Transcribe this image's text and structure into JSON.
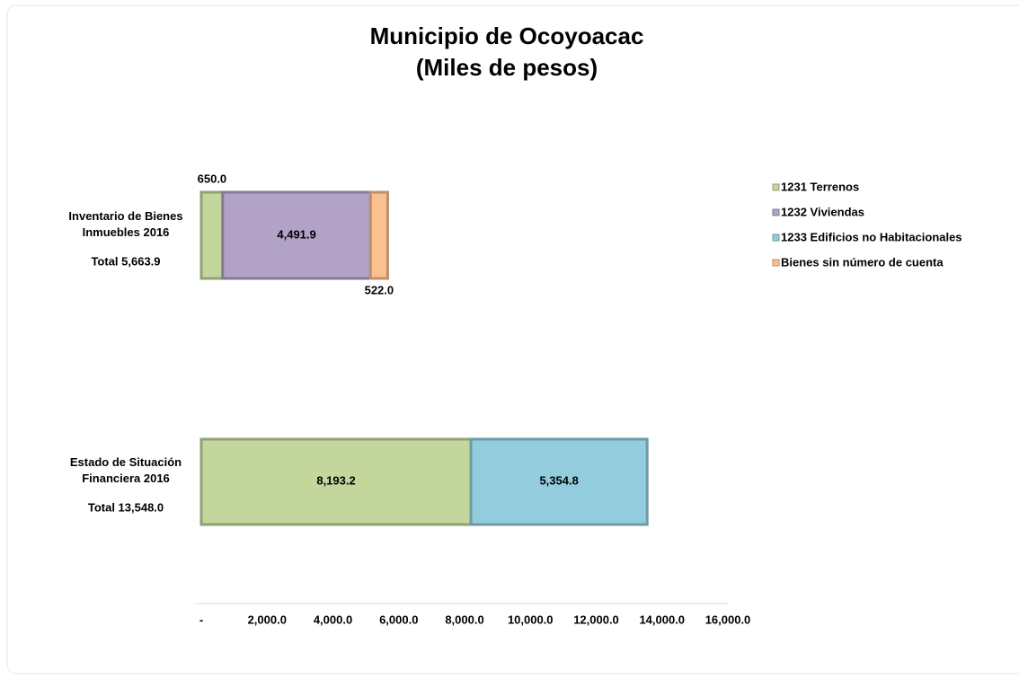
{
  "chart_data": {
    "type": "stacked_barh",
    "title": "Municipio de Ocoyoacac",
    "subtitle": "(Miles de pesos)",
    "categories": [
      "Inventario de Bienes\nInmuebles 2016",
      "Estado de Situación\nFinanciera 2016"
    ],
    "category_totals": [
      "Total 5,663.9",
      "Total  13,548.0"
    ],
    "series": [
      {
        "name": "1231 Terrenos",
        "color": "#c3d69b",
        "values": [
          650.0,
          8193.2
        ],
        "value_labels": [
          "650.0",
          "8,193.2"
        ]
      },
      {
        "name": "1232 Viviendas",
        "color": "#b3a2c7",
        "values": [
          4491.9,
          null
        ],
        "value_labels": [
          "4,491.9",
          null
        ]
      },
      {
        "name": "1233 Edificios no Habitacionales",
        "color": "#93cddd",
        "values": [
          null,
          5354.8
        ],
        "value_labels": [
          null,
          "5,354.8"
        ]
      },
      {
        "name": "Bienes sin número de cuenta",
        "color": "#fac090",
        "values": [
          522.0,
          null
        ],
        "value_labels": [
          "522.0",
          null
        ]
      }
    ],
    "xlim": [
      0,
      16000
    ],
    "xticks": [
      {
        "value": 0,
        "label": "-"
      },
      {
        "value": 2000,
        "label": "2,000.0"
      },
      {
        "value": 4000,
        "label": "4,000.0"
      },
      {
        "value": 6000,
        "label": "6,000.0"
      },
      {
        "value": 8000,
        "label": "8,000.0"
      },
      {
        "value": 10000,
        "label": "10,000.0"
      },
      {
        "value": 12000,
        "label": "12,000.0"
      },
      {
        "value": 14000,
        "label": "14,000.0"
      },
      {
        "value": 16000,
        "label": "16,000.0"
      }
    ],
    "legend": "right"
  }
}
